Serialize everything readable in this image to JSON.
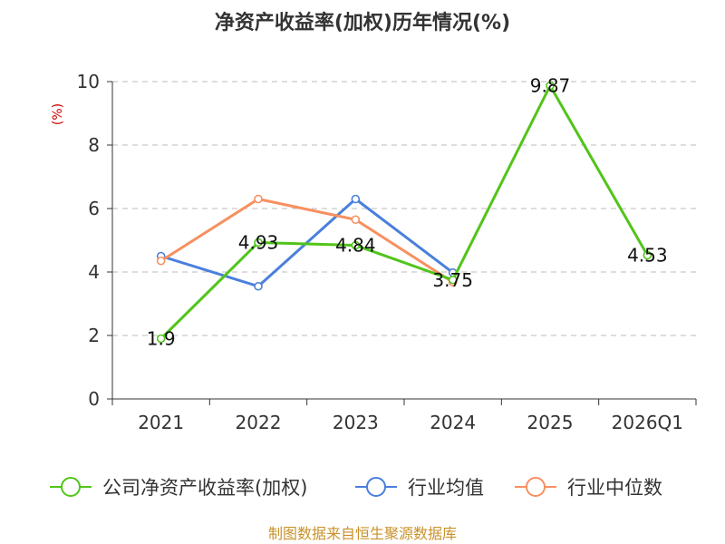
{
  "chart_data": {
    "type": "line",
    "title": "净资产收益率(加权)历年情况(%)",
    "ylabel": "(%)",
    "xlabel": "",
    "categories": [
      "2021",
      "2022",
      "2023",
      "2024",
      "2025",
      "2026Q1"
    ],
    "ylim": [
      0,
      10
    ],
    "yticks": [
      0,
      2,
      4,
      6,
      8,
      10
    ],
    "grid": true,
    "legend_position": "bottom",
    "series": [
      {
        "name": "公司净资产收益率(加权)",
        "color": "#52c41a",
        "values": [
          1.9,
          4.93,
          4.84,
          3.75,
          9.87,
          4.53
        ],
        "labels": [
          "1.9",
          "4.93",
          "4.84",
          "3.75",
          "9.87",
          "4.53"
        ]
      },
      {
        "name": "行业均值",
        "color": "#4a7fdc",
        "values": [
          4.5,
          3.55,
          6.3,
          3.98,
          null,
          null
        ]
      },
      {
        "name": "行业中位数",
        "color": "#f79060",
        "values": [
          4.35,
          6.3,
          5.65,
          3.68,
          null,
          null
        ]
      }
    ]
  },
  "colors": {
    "axis": "#333333",
    "grid": "#bbbbbb",
    "unit": "#cc0000",
    "source": "#c8922a"
  },
  "source": "制图数据来自恒生聚源数据库"
}
